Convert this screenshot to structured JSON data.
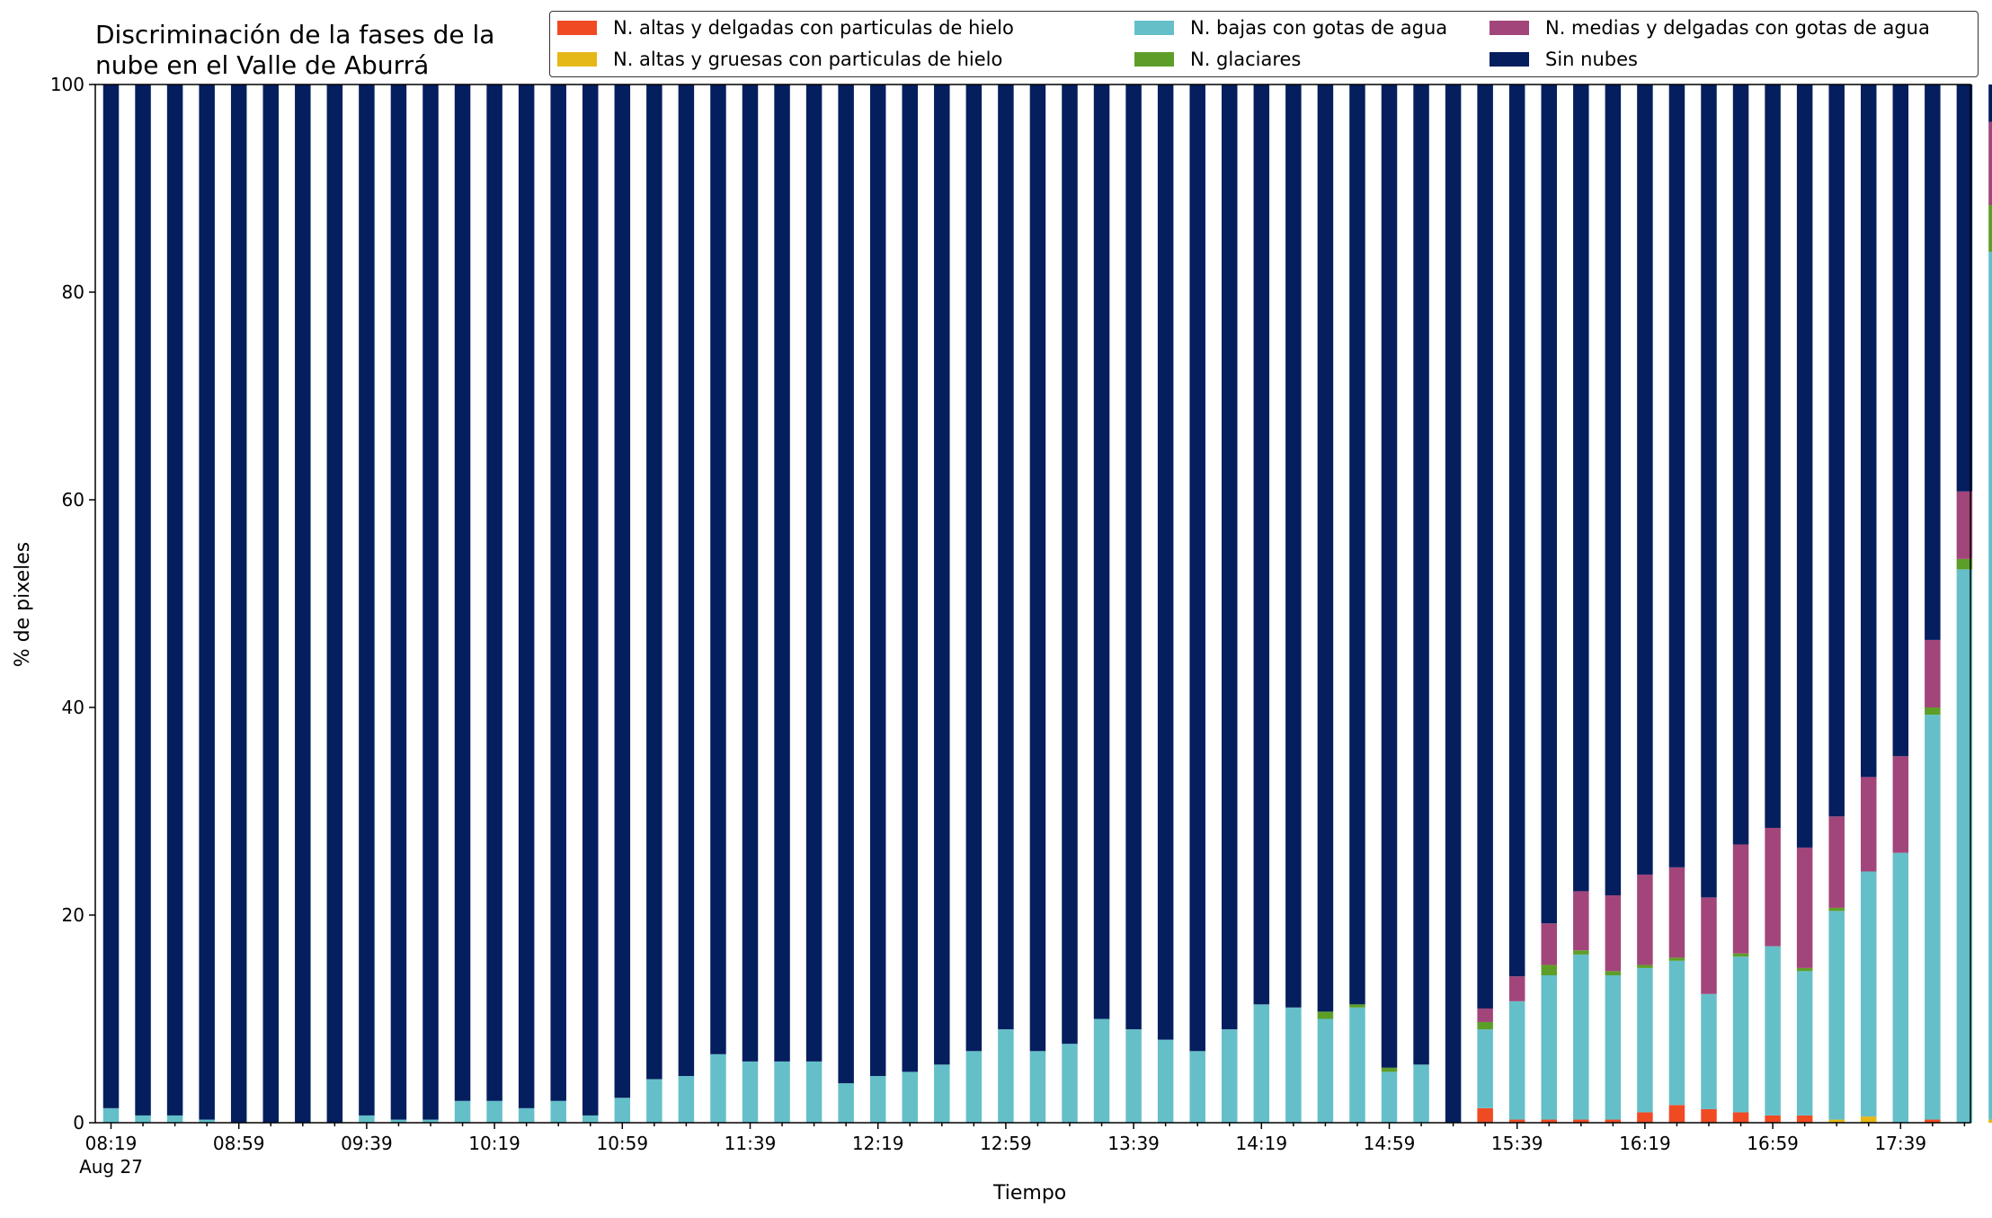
{
  "title": "Discriminación de la fases de la\nnube en el Valle de Aburrá",
  "legend": [
    {
      "name": "N. altas y delgadas con particulas de hielo",
      "color": "#f04a23"
    },
    {
      "name": "N. altas y gruesas con particulas de hielo",
      "color": "#e6b817"
    },
    {
      "name": "N. bajas con gotas de agua",
      "color": "#65bfc9"
    },
    {
      "name": "N. glaciares",
      "color": "#5d9e29"
    },
    {
      "name": "N. medias y delgadas con gotas de agua",
      "color": "#a2457a"
    },
    {
      "name": "Sin nubes",
      "color": "#051e5e"
    }
  ],
  "chart_data": {
    "type": "bar",
    "stacked": true,
    "title": "Discriminación de la fases de la\nnube en el Valle de Aburrá",
    "xlabel": "Tiempo",
    "ylabel": "% de pixeles",
    "ylim": [
      0,
      100
    ],
    "yticks": [
      0,
      20,
      40,
      60,
      80,
      100
    ],
    "x_tick_labels": [
      "08:19",
      "08:59",
      "09:39",
      "10:19",
      "10:59",
      "11:39",
      "12:19",
      "12:59",
      "13:39",
      "14:19",
      "14:59",
      "15:39",
      "16:19",
      "16:59",
      "17:39"
    ],
    "x_date_label": "Aug 27",
    "legend_position": "top-right",
    "grid": false,
    "series": [
      {
        "name": "N. altas y delgadas con particulas de hielo",
        "color": "#f04a23",
        "values": [
          0,
          0,
          0,
          0,
          0,
          0,
          0,
          0,
          0,
          0,
          0,
          0,
          0,
          0,
          0,
          0,
          0,
          0,
          0,
          0,
          0,
          0,
          0,
          0,
          0,
          0,
          0,
          0,
          0,
          0,
          0,
          0,
          0,
          0,
          0,
          0,
          0,
          0,
          0,
          0,
          0,
          0,
          0,
          1.4,
          0.3,
          0.3,
          0.3,
          0.3,
          1.0,
          1.7,
          1.3,
          1.0,
          0.7,
          0.7,
          0,
          0,
          0,
          0.3,
          0,
          0
        ]
      },
      {
        "name": "N. altas y gruesas con particulas de hielo",
        "color": "#e6b817",
        "values": [
          0,
          0,
          0,
          0,
          0,
          0,
          0,
          0,
          0,
          0,
          0,
          0,
          0,
          0,
          0,
          0,
          0,
          0,
          0,
          0,
          0,
          0,
          0,
          0,
          0,
          0,
          0,
          0,
          0,
          0,
          0,
          0,
          0,
          0,
          0,
          0,
          0,
          0,
          0,
          0,
          0,
          0,
          0,
          0,
          0,
          0,
          0,
          0,
          0,
          0,
          0,
          0,
          0,
          0,
          0.3,
          0.6,
          0,
          0,
          0,
          0.3
        ]
      },
      {
        "name": "N. bajas con gotas de agua",
        "color": "#65bfc9",
        "values": [
          1.4,
          0.7,
          0.7,
          0.3,
          0,
          0,
          0,
          0,
          0.7,
          0.3,
          0.3,
          2.1,
          2.1,
          1.4,
          2.1,
          0.7,
          2.4,
          4.2,
          4.5,
          6.6,
          5.9,
          5.9,
          5.9,
          3.8,
          4.5,
          4.9,
          5.6,
          6.9,
          9.0,
          6.9,
          7.6,
          10.0,
          9.0,
          8.0,
          6.9,
          9.0,
          11.4,
          11.1,
          10.0,
          11.1,
          4.9,
          5.6,
          0,
          7.6,
          11.4,
          13.9,
          15.9,
          13.9,
          13.9,
          13.9,
          11.1,
          15.0,
          16.3,
          13.9,
          20.1,
          23.6,
          26.0,
          39.0,
          53.3,
          83.6
        ]
      },
      {
        "name": "N. glaciares",
        "color": "#5d9e29",
        "values": [
          0,
          0,
          0,
          0,
          0,
          0,
          0,
          0,
          0,
          0,
          0,
          0,
          0,
          0,
          0,
          0,
          0,
          0,
          0,
          0,
          0,
          0,
          0,
          0,
          0,
          0,
          0,
          0,
          0,
          0,
          0,
          0,
          0,
          0,
          0,
          0,
          0,
          0,
          0.7,
          0.3,
          0.4,
          0,
          0,
          0.7,
          0,
          1.0,
          0.4,
          0.4,
          0.3,
          0.3,
          0,
          0.3,
          0,
          0.3,
          0.3,
          0,
          0,
          0.7,
          1.0,
          4.5
        ]
      },
      {
        "name": "N. medias y delgadas con gotas de agua",
        "color": "#a2457a",
        "values": [
          0,
          0,
          0,
          0,
          0,
          0,
          0,
          0,
          0,
          0,
          0,
          0,
          0,
          0,
          0,
          0,
          0,
          0,
          0,
          0,
          0,
          0,
          0,
          0,
          0,
          0,
          0,
          0,
          0,
          0,
          0,
          0,
          0,
          0,
          0,
          0,
          0,
          0,
          0,
          0,
          0,
          0,
          0,
          1.3,
          2.4,
          4.0,
          5.7,
          7.3,
          8.7,
          8.7,
          9.3,
          10.5,
          11.4,
          11.6,
          8.8,
          9.1,
          9.3,
          6.5,
          6.5,
          8.0
        ]
      },
      {
        "name": "Sin nubes",
        "color": "#051e5e",
        "values": [
          98.6,
          99.3,
          99.3,
          99.7,
          100,
          100,
          100,
          100,
          99.3,
          99.7,
          99.7,
          97.9,
          97.9,
          98.6,
          97.9,
          99.3,
          97.6,
          95.8,
          95.5,
          93.4,
          94.1,
          94.1,
          94.1,
          96.2,
          95.5,
          95.1,
          94.4,
          93.1,
          91.0,
          93.1,
          92.4,
          90.0,
          91.0,
          92.0,
          93.1,
          91.0,
          88.6,
          88.9,
          89.3,
          88.6,
          94.7,
          94.4,
          100,
          89.0,
          85.9,
          80.8,
          77.7,
          78.1,
          76.1,
          75.4,
          78.3,
          73.2,
          71.6,
          73.5,
          70.5,
          66.7,
          64.7,
          53.5,
          39.2,
          3.6
        ]
      }
    ]
  }
}
